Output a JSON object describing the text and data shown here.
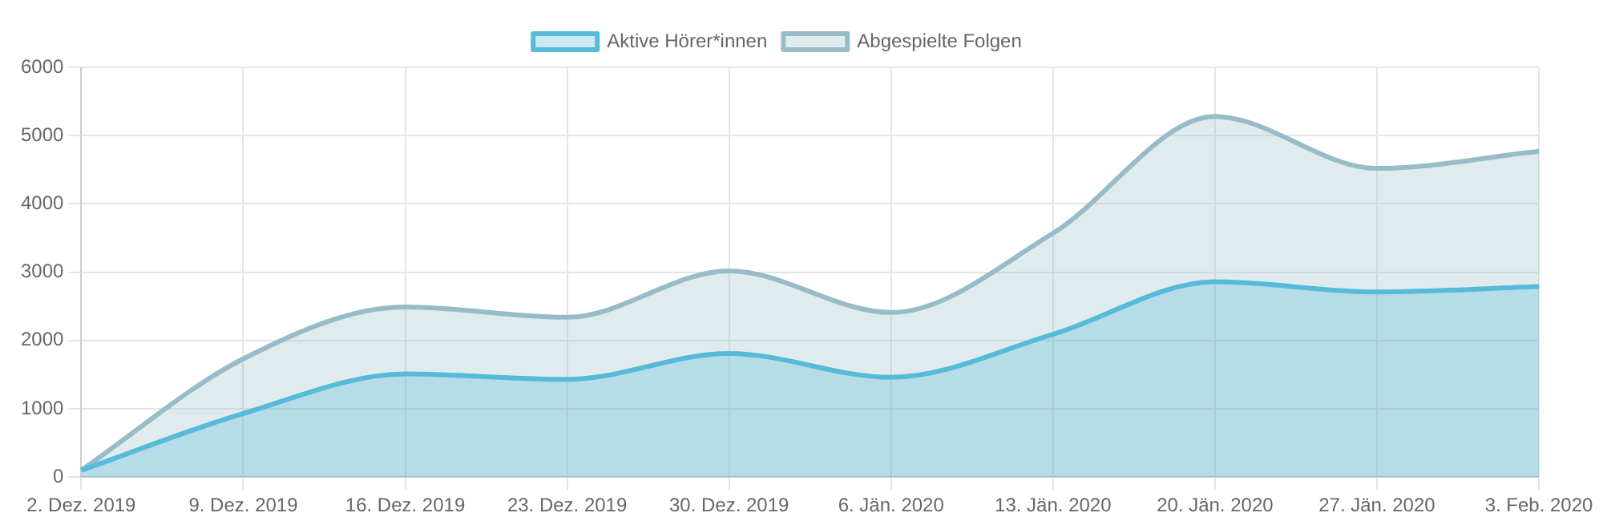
{
  "chart_data": {
    "type": "area",
    "categories": [
      "2. Dez. 2019",
      "9. Dez. 2019",
      "16. Dez. 2019",
      "23. Dez. 2019",
      "30. Dez. 2019",
      "6. Jän. 2020",
      "13. Jän. 2020",
      "20. Jän. 2020",
      "27. Jän. 2020",
      "3. Feb. 2020"
    ],
    "series": [
      {
        "name": "Aktive Hörer*innen",
        "color": "#55bbd9",
        "values": [
          100,
          930,
          1510,
          1430,
          1810,
          1460,
          2090,
          2860,
          2710,
          2790
        ]
      },
      {
        "name": "Abgespielte Folgen",
        "color": "#97bcc8",
        "values": [
          100,
          1730,
          2490,
          2340,
          3020,
          2410,
          3570,
          5280,
          4520,
          4770
        ]
      }
    ],
    "ylim": [
      0,
      6000
    ],
    "yticks": [
      0,
      1000,
      2000,
      3000,
      4000,
      5000,
      6000
    ],
    "grid": true,
    "legend": "top",
    "marker": "none",
    "line_style": "solid"
  }
}
